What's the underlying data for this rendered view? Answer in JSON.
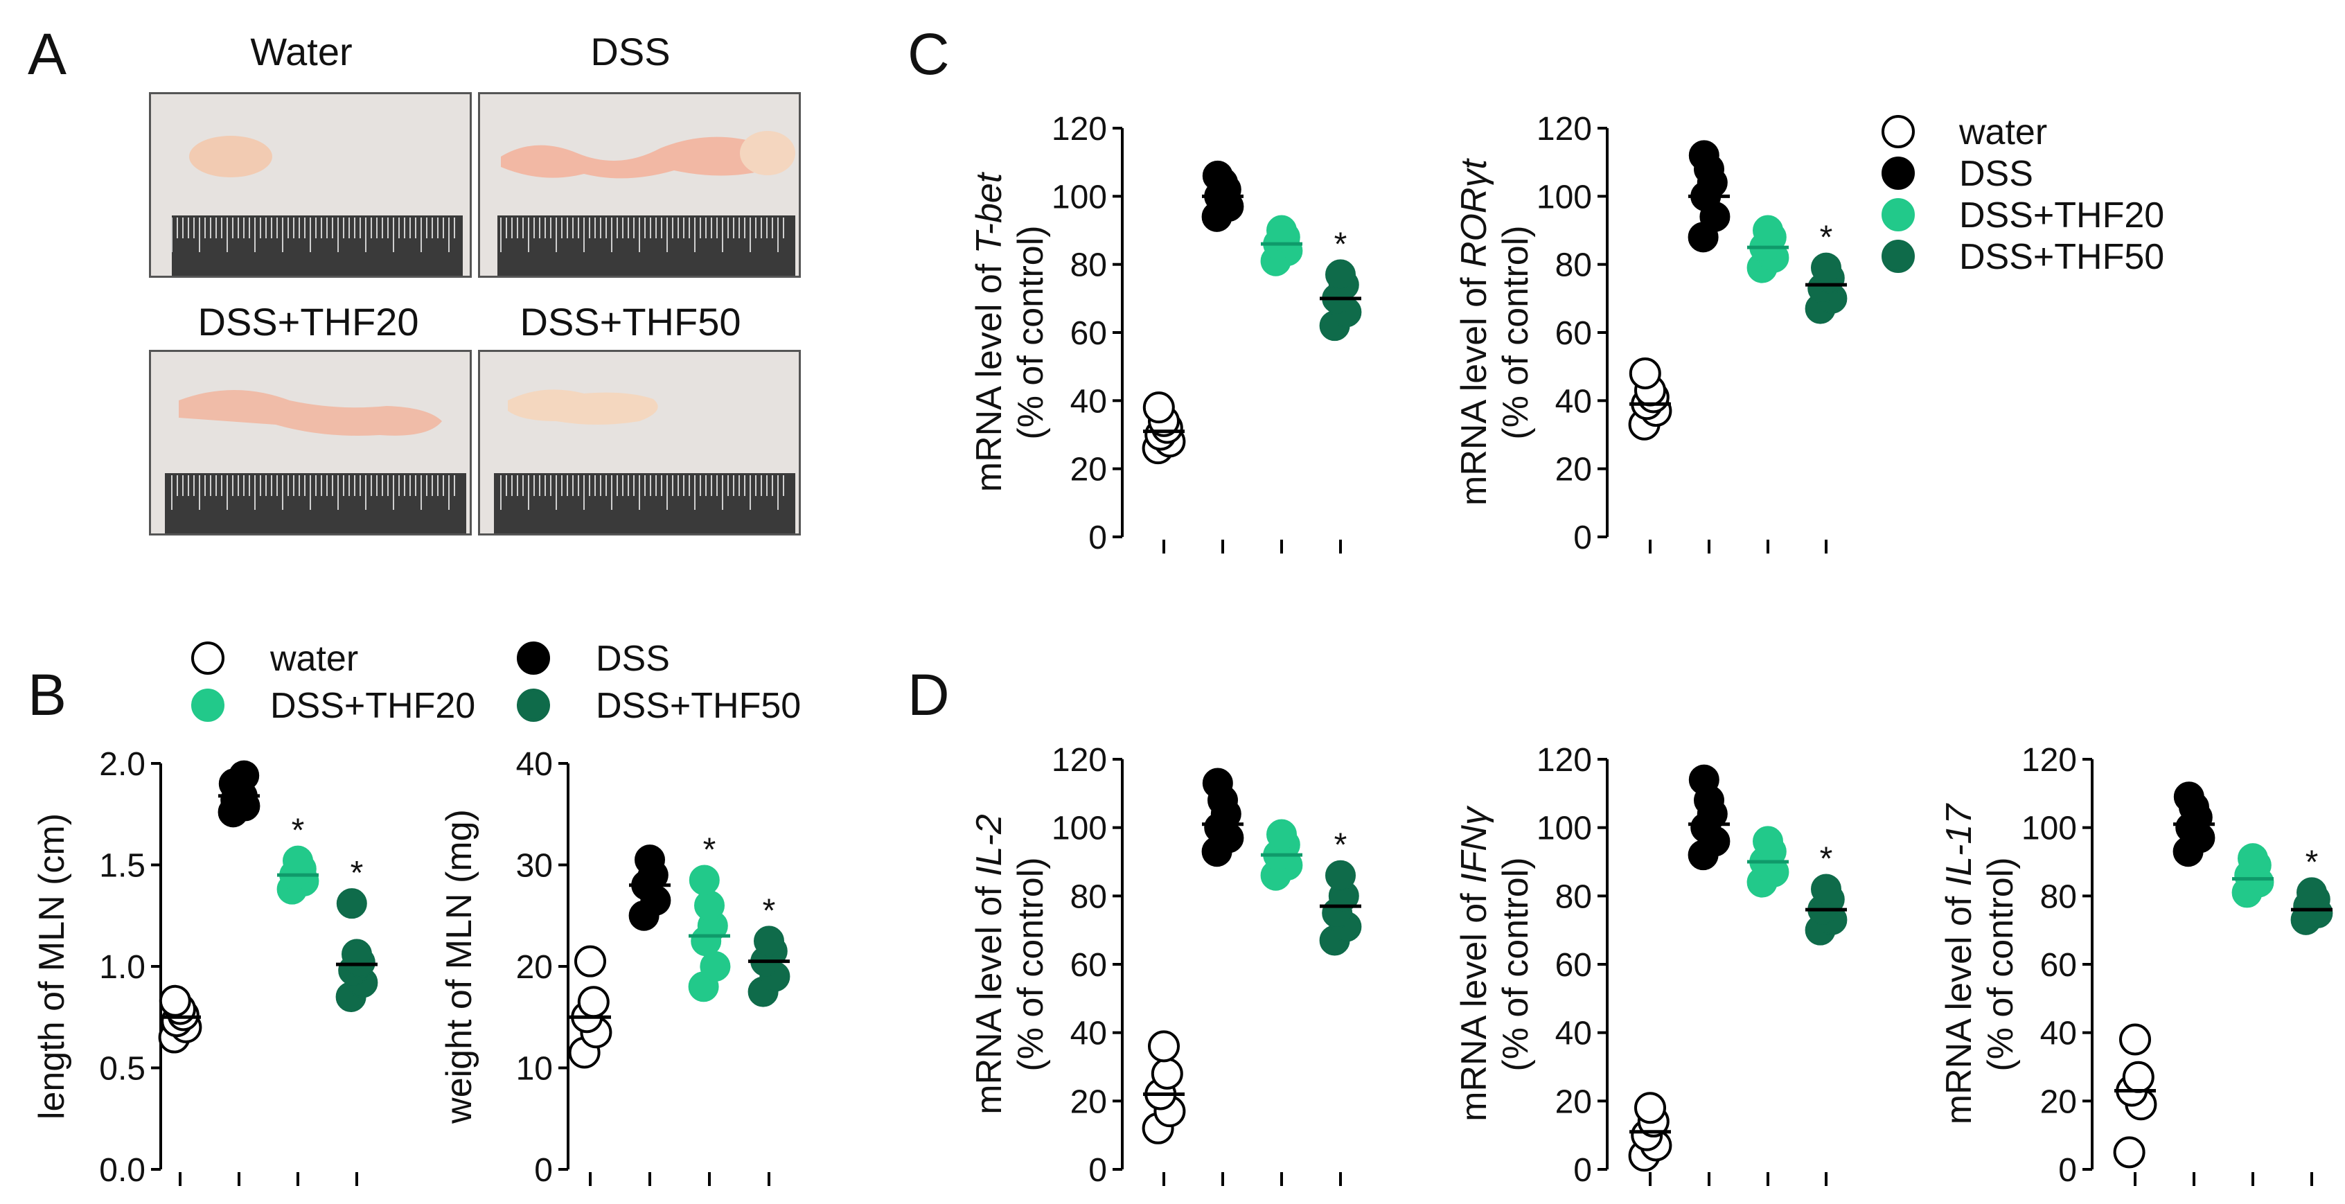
{
  "colors": {
    "water": "#ffffff",
    "dss": "#000000",
    "thf20": "#22c98a",
    "thf50": "#0f6b4a",
    "mean_thf20": "#0f9a6a",
    "ruler": "#3a3a3a",
    "tissue": "#f2cbb2",
    "bg_photo": "#e6e2df"
  },
  "panels": {
    "A": "A",
    "B": "B",
    "C": "C",
    "D": "D"
  },
  "photos": [
    {
      "key": "water",
      "label": "Water"
    },
    {
      "key": "dss",
      "label": "DSS"
    },
    {
      "key": "thf20",
      "label": "DSS+THF20"
    },
    {
      "key": "thf50",
      "label": "DSS+THF50"
    }
  ],
  "legend_B": [
    {
      "key": "water",
      "label": "water"
    },
    {
      "key": "dss",
      "label": "DSS"
    },
    {
      "key": "thf20",
      "label": "DSS+THF20"
    },
    {
      "key": "thf50",
      "label": "DSS+THF50"
    }
  ],
  "legend_C": [
    {
      "key": "water",
      "label": "water"
    },
    {
      "key": "dss",
      "label": "DSS"
    },
    {
      "key": "thf20",
      "label": "DSS+THF20"
    },
    {
      "key": "thf50",
      "label": "DSS+THF50"
    }
  ],
  "sig_marker": "*",
  "chart_data": [
    {
      "id": "b_length",
      "type": "scatter",
      "title": "",
      "xlabel": "",
      "ylabel_lines": [
        [
          {
            "t": "length of MLN (cm)",
            "i": false
          }
        ]
      ],
      "ylim": [
        0,
        2.0
      ],
      "yticks": [
        "0.0",
        "0.5",
        "1.0",
        "1.5",
        "2.0"
      ],
      "ytick_values": [
        0,
        0.5,
        1,
        1.5,
        2
      ],
      "groups": [
        {
          "key": "water",
          "values": [
            0.65,
            0.7,
            0.73,
            0.76,
            0.79,
            0.83
          ],
          "mean": 0.75,
          "sig": false
        },
        {
          "key": "dss",
          "values": [
            1.76,
            1.79,
            1.82,
            1.84,
            1.87,
            1.9,
            1.94
          ],
          "mean": 1.84,
          "sig": false
        },
        {
          "key": "thf20",
          "values": [
            1.38,
            1.42,
            1.45,
            1.48,
            1.52
          ],
          "mean": 1.45,
          "sig": true
        },
        {
          "key": "thf50",
          "values": [
            0.85,
            0.92,
            0.98,
            1.02,
            1.06,
            1.31
          ],
          "mean": 1.01,
          "sig": true
        }
      ]
    },
    {
      "id": "b_weight",
      "type": "scatter",
      "title": "",
      "xlabel": "",
      "ylabel_lines": [
        [
          {
            "t": "weight of MLN (mg)",
            "i": false
          }
        ]
      ],
      "ylim": [
        0,
        40
      ],
      "yticks": [
        "0",
        "10",
        "20",
        "30",
        "40"
      ],
      "ytick_values": [
        0,
        10,
        20,
        30,
        40
      ],
      "groups": [
        {
          "key": "water",
          "values": [
            11.5,
            13.5,
            15,
            16.5,
            20.5
          ],
          "mean": 15,
          "sig": false
        },
        {
          "key": "dss",
          "values": [
            25,
            26.5,
            28,
            29,
            30.5
          ],
          "mean": 28,
          "sig": false
        },
        {
          "key": "thf20",
          "values": [
            18,
            20,
            22.5,
            24,
            26,
            28.5
          ],
          "mean": 23,
          "sig": true
        },
        {
          "key": "thf50",
          "values": [
            17.5,
            19,
            20.5,
            21.5,
            22.5
          ],
          "mean": 20.5,
          "sig": true
        }
      ]
    },
    {
      "id": "c_tbet",
      "type": "scatter",
      "title": "",
      "xlabel": "",
      "ylabel_lines": [
        [
          {
            "t": "mRNA level of ",
            "i": false
          },
          {
            "t": "T-bet",
            "i": true
          }
        ],
        [
          {
            "t": "(% of control)",
            "i": false
          }
        ]
      ],
      "ylim": [
        0,
        120
      ],
      "yticks": [
        "0",
        "20",
        "40",
        "60",
        "80",
        "100",
        "120"
      ],
      "ytick_values": [
        0,
        20,
        40,
        60,
        80,
        100,
        120
      ],
      "groups": [
        {
          "key": "water",
          "values": [
            26,
            28,
            30,
            32,
            34,
            38
          ],
          "mean": 31,
          "sig": false
        },
        {
          "key": "dss",
          "values": [
            94,
            97,
            100,
            102,
            104,
            106
          ],
          "mean": 100,
          "sig": false
        },
        {
          "key": "thf20",
          "values": [
            81,
            84,
            86,
            88,
            90
          ],
          "mean": 86,
          "sig": false
        },
        {
          "key": "thf50",
          "values": [
            62,
            66,
            70,
            74,
            77
          ],
          "mean": 70,
          "sig": true
        }
      ]
    },
    {
      "id": "c_rorgt",
      "type": "scatter",
      "title": "",
      "xlabel": "",
      "ylabel_lines": [
        [
          {
            "t": "mRNA level of ",
            "i": false
          },
          {
            "t": "RORγt",
            "i": true
          }
        ],
        [
          {
            "t": "(% of control)",
            "i": false
          }
        ]
      ],
      "ylim": [
        0,
        120
      ],
      "yticks": [
        "0",
        "20",
        "40",
        "60",
        "80",
        "100",
        "120"
      ],
      "ytick_values": [
        0,
        20,
        40,
        60,
        80,
        100,
        120
      ],
      "groups": [
        {
          "key": "water",
          "values": [
            33,
            37,
            39,
            41,
            43,
            48
          ],
          "mean": 39,
          "sig": false
        },
        {
          "key": "dss",
          "values": [
            88,
            94,
            100,
            104,
            108,
            112
          ],
          "mean": 100,
          "sig": false
        },
        {
          "key": "thf20",
          "values": [
            79,
            82,
            85,
            88,
            90
          ],
          "mean": 85,
          "sig": false
        },
        {
          "key": "thf50",
          "values": [
            67,
            70,
            73,
            76,
            79
          ],
          "mean": 74,
          "sig": true
        }
      ]
    },
    {
      "id": "d_il2",
      "type": "scatter",
      "title": "",
      "xlabel": "",
      "ylabel_lines": [
        [
          {
            "t": "mRNA level of ",
            "i": false
          },
          {
            "t": "IL-2",
            "i": true
          }
        ],
        [
          {
            "t": "(% of control)",
            "i": false
          }
        ]
      ],
      "ylim": [
        0,
        120
      ],
      "yticks": [
        "0",
        "20",
        "40",
        "60",
        "80",
        "100",
        "120"
      ],
      "ytick_values": [
        0,
        20,
        40,
        60,
        80,
        100,
        120
      ],
      "groups": [
        {
          "key": "water",
          "values": [
            12,
            17,
            22,
            28,
            36
          ],
          "mean": 22,
          "sig": false
        },
        {
          "key": "dss",
          "values": [
            93,
            97,
            100,
            104,
            108,
            113
          ],
          "mean": 101,
          "sig": false
        },
        {
          "key": "thf20",
          "values": [
            86,
            89,
            92,
            95,
            98
          ],
          "mean": 92,
          "sig": false
        },
        {
          "key": "thf50",
          "values": [
            67,
            71,
            75,
            80,
            86
          ],
          "mean": 77,
          "sig": true
        }
      ]
    },
    {
      "id": "d_ifng",
      "type": "scatter",
      "title": "",
      "xlabel": "",
      "ylabel_lines": [
        [
          {
            "t": "mRNA level of ",
            "i": false
          },
          {
            "t": "IFNγ",
            "i": true
          }
        ],
        [
          {
            "t": "(% of control)",
            "i": false
          }
        ]
      ],
      "ylim": [
        0,
        120
      ],
      "yticks": [
        "0",
        "20",
        "40",
        "60",
        "80",
        "100",
        "120"
      ],
      "ytick_values": [
        0,
        20,
        40,
        60,
        80,
        100,
        120
      ],
      "groups": [
        {
          "key": "water",
          "values": [
            4,
            7,
            10,
            14,
            18
          ],
          "mean": 11,
          "sig": false
        },
        {
          "key": "dss",
          "values": [
            92,
            96,
            100,
            104,
            108,
            114
          ],
          "mean": 101,
          "sig": false
        },
        {
          "key": "thf20",
          "values": [
            84,
            87,
            90,
            93,
            96
          ],
          "mean": 90,
          "sig": false
        },
        {
          "key": "thf50",
          "values": [
            70,
            73,
            76,
            79,
            82
          ],
          "mean": 76,
          "sig": true
        }
      ]
    },
    {
      "id": "d_il17",
      "type": "scatter",
      "title": "",
      "xlabel": "",
      "ylabel_lines": [
        [
          {
            "t": "mRNA level of ",
            "i": false
          },
          {
            "t": "IL-17",
            "i": true
          }
        ],
        [
          {
            "t": "(% of control)",
            "i": false
          }
        ]
      ],
      "ylim": [
        0,
        120
      ],
      "yticks": [
        "0",
        "20",
        "40",
        "60",
        "80",
        "100",
        "120"
      ],
      "ytick_values": [
        0,
        20,
        40,
        60,
        80,
        100,
        120
      ],
      "groups": [
        {
          "key": "water",
          "values": [
            5,
            19,
            23,
            27,
            38
          ],
          "mean": 23,
          "sig": false
        },
        {
          "key": "dss",
          "values": [
            93,
            97,
            100,
            103,
            106,
            109
          ],
          "mean": 101,
          "sig": false
        },
        {
          "key": "thf20",
          "values": [
            81,
            84,
            86,
            89,
            91
          ],
          "mean": 85,
          "sig": false
        },
        {
          "key": "thf50",
          "values": [
            73,
            75,
            77,
            79,
            81
          ],
          "mean": 76,
          "sig": true
        }
      ]
    }
  ]
}
